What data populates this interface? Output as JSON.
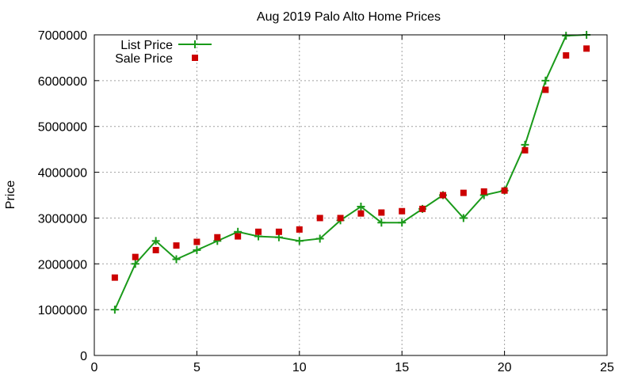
{
  "chart_data": {
    "type": "line",
    "title": "Aug 2019 Palo Alto Home Prices",
    "xlabel": "",
    "ylabel": "Price",
    "xlim": [
      0,
      25
    ],
    "ylim": [
      0,
      7000000
    ],
    "x_ticks": [
      0,
      5,
      10,
      15,
      20,
      25
    ],
    "y_ticks": [
      0,
      1000000,
      2000000,
      3000000,
      4000000,
      5000000,
      6000000,
      7000000
    ],
    "grid": true,
    "legend_position": "top-left",
    "series": [
      {
        "name": "List Price",
        "kind": "line-points",
        "color": "#1a9a1a",
        "marker": "plus",
        "x": [
          1,
          2,
          3,
          4,
          5,
          6,
          7,
          8,
          9,
          10,
          11,
          12,
          13,
          14,
          15,
          16,
          17,
          18,
          19,
          20,
          21,
          22,
          23,
          24
        ],
        "y": [
          1000000,
          2000000,
          2500000,
          2100000,
          2300000,
          2500000,
          2700000,
          2600000,
          2580000,
          2500000,
          2550000,
          2950000,
          3250000,
          2900000,
          2900000,
          3200000,
          3500000,
          3000000,
          3500000,
          3600000,
          4600000,
          6000000,
          6980000,
          7000000
        ]
      },
      {
        "name": "Sale Price",
        "kind": "points",
        "color": "#cc0000",
        "marker": "square",
        "x": [
          1,
          2,
          3,
          4,
          5,
          6,
          7,
          8,
          9,
          10,
          11,
          12,
          13,
          14,
          15,
          16,
          17,
          18,
          19,
          20,
          21,
          22,
          23,
          24
        ],
        "y": [
          1700000,
          2150000,
          2300000,
          2400000,
          2480000,
          2580000,
          2600000,
          2700000,
          2700000,
          2750000,
          3000000,
          3000000,
          3100000,
          3120000,
          3150000,
          3200000,
          3500000,
          3550000,
          3580000,
          3600000,
          4480000,
          5800000,
          6550000,
          6700000
        ]
      }
    ]
  }
}
